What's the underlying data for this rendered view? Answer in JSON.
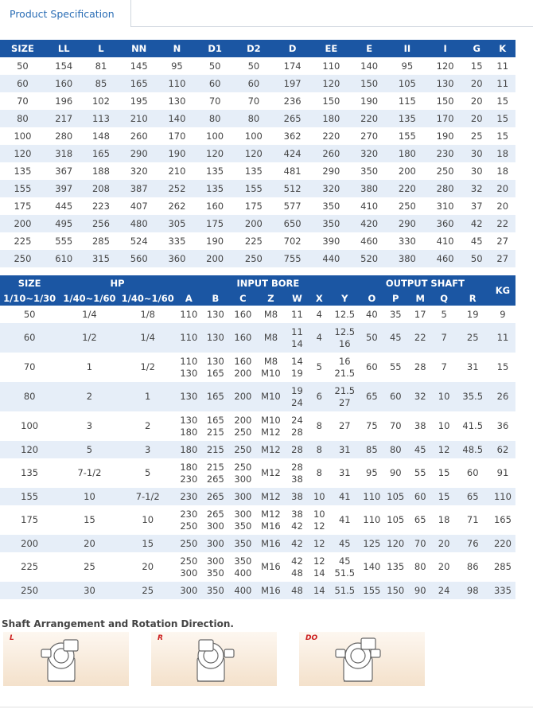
{
  "header": {
    "tab_label": "Product Specification"
  },
  "table1": {
    "columns": [
      "SIZE",
      "LL",
      "L",
      "NN",
      "N",
      "D1",
      "D2",
      "D",
      "EE",
      "E",
      "II",
      "I",
      "G",
      "K"
    ],
    "rows": [
      [
        "50",
        "154",
        "81",
        "145",
        "95",
        "50",
        "50",
        "174",
        "110",
        "140",
        "95",
        "120",
        "15",
        "11"
      ],
      [
        "60",
        "160",
        "85",
        "165",
        "110",
        "60",
        "60",
        "197",
        "120",
        "150",
        "105",
        "130",
        "20",
        "11"
      ],
      [
        "70",
        "196",
        "102",
        "195",
        "130",
        "70",
        "70",
        "236",
        "150",
        "190",
        "115",
        "150",
        "20",
        "15"
      ],
      [
        "80",
        "217",
        "113",
        "210",
        "140",
        "80",
        "80",
        "265",
        "180",
        "220",
        "135",
        "170",
        "20",
        "15"
      ],
      [
        "100",
        "280",
        "148",
        "260",
        "170",
        "100",
        "100",
        "362",
        "220",
        "270",
        "155",
        "190",
        "25",
        "15"
      ],
      [
        "120",
        "318",
        "165",
        "290",
        "190",
        "120",
        "120",
        "424",
        "260",
        "320",
        "180",
        "230",
        "30",
        "18"
      ],
      [
        "135",
        "367",
        "188",
        "320",
        "210",
        "135",
        "135",
        "481",
        "290",
        "350",
        "200",
        "250",
        "30",
        "18"
      ],
      [
        "155",
        "397",
        "208",
        "387",
        "252",
        "135",
        "155",
        "512",
        "320",
        "380",
        "220",
        "280",
        "32",
        "20"
      ],
      [
        "175",
        "445",
        "223",
        "407",
        "262",
        "160",
        "175",
        "577",
        "350",
        "410",
        "250",
        "310",
        "37",
        "20"
      ],
      [
        "200",
        "495",
        "256",
        "480",
        "305",
        "175",
        "200",
        "650",
        "350",
        "420",
        "290",
        "360",
        "42",
        "22"
      ],
      [
        "225",
        "555",
        "285",
        "524",
        "335",
        "190",
        "225",
        "702",
        "390",
        "460",
        "330",
        "410",
        "45",
        "27"
      ],
      [
        "250",
        "610",
        "315",
        "560",
        "360",
        "200",
        "250",
        "755",
        "440",
        "520",
        "380",
        "460",
        "50",
        "27"
      ]
    ]
  },
  "table2": {
    "group_headers": {
      "size": "SIZE",
      "hp": "HP",
      "input_bore": "INPUT BORE",
      "output_shaft": "OUTPUT SHAFT",
      "kg": "KG"
    },
    "sub_headers": [
      "1/10~1/30",
      "1/40~1/60",
      "1/40~1/60",
      "A",
      "B",
      "C",
      "Z",
      "W",
      "X",
      "Y",
      "O",
      "P",
      "M",
      "Q",
      "R"
    ],
    "rows": [
      {
        "size": "50",
        "hp1": "1/4",
        "hp2": "1/8",
        "a": "110",
        "b": "130",
        "c": "160",
        "z": "M8",
        "w": "11",
        "x": "4",
        "y": "12.5",
        "o": "40",
        "p": "35",
        "m": "17",
        "q": "5",
        "r": "19",
        "kg": "9"
      },
      {
        "size": "60",
        "hp1": "1/2",
        "hp2": "1/4",
        "a": "110",
        "b": "130",
        "c": "160",
        "z": "M8",
        "w": "11\n14",
        "x": "4",
        "y": "12.5\n16",
        "o": "50",
        "p": "45",
        "m": "22",
        "q": "7",
        "r": "25",
        "kg": "11"
      },
      {
        "size": "70",
        "hp1": "1",
        "hp2": "1/2",
        "a": "110\n130",
        "b": "130\n165",
        "c": "160\n200",
        "z": "M8\nM10",
        "w": "14\n19",
        "x": "5",
        "y": "16\n21.5",
        "o": "60",
        "p": "55",
        "m": "28",
        "q": "7",
        "r": "31",
        "kg": "15"
      },
      {
        "size": "80",
        "hp1": "2",
        "hp2": "1",
        "a": "130",
        "b": "165",
        "c": "200",
        "z": "M10",
        "w": "19\n24",
        "x": "6",
        "y": "21.5\n27",
        "o": "65",
        "p": "60",
        "m": "32",
        "q": "10",
        "r": "35.5",
        "kg": "26"
      },
      {
        "size": "100",
        "hp1": "3",
        "hp2": "2",
        "a": "130\n180",
        "b": "165\n215",
        "c": "200\n250",
        "z": "M10\nM12",
        "w": "24\n28",
        "x": "8",
        "y": "27",
        "o": "75",
        "p": "70",
        "m": "38",
        "q": "10",
        "r": "41.5",
        "kg": "36"
      },
      {
        "size": "120",
        "hp1": "5",
        "hp2": "3",
        "a": "180",
        "b": "215",
        "c": "250",
        "z": "M12",
        "w": "28",
        "x": "8",
        "y": "31",
        "o": "85",
        "p": "80",
        "m": "45",
        "q": "12",
        "r": "48.5",
        "kg": "62"
      },
      {
        "size": "135",
        "hp1": "7-1/2",
        "hp2": "5",
        "a": "180\n230",
        "b": "215\n265",
        "c": "250\n300",
        "z": "M12",
        "w": "28\n38",
        "x": "8",
        "y": "31",
        "o": "95",
        "p": "90",
        "m": "55",
        "q": "15",
        "r": "60",
        "kg": "91"
      },
      {
        "size": "155",
        "hp1": "10",
        "hp2": "7-1/2",
        "a": "230",
        "b": "265",
        "c": "300",
        "z": "M12",
        "w": "38",
        "x": "10",
        "y": "41",
        "o": "110",
        "p": "105",
        "m": "60",
        "q": "15",
        "r": "65",
        "kg": "110"
      },
      {
        "size": "175",
        "hp1": "15",
        "hp2": "10",
        "a": "230\n250",
        "b": "265\n300",
        "c": "300\n350",
        "z": "M12\nM16",
        "w": "38\n42",
        "x": "10\n12",
        "y": "41",
        "o": "110",
        "p": "105",
        "m": "65",
        "q": "18",
        "r": "71",
        "kg": "165"
      },
      {
        "size": "200",
        "hp1": "20",
        "hp2": "15",
        "a": "250",
        "b": "300",
        "c": "350",
        "z": "M16",
        "w": "42",
        "x": "12",
        "y": "45",
        "o": "125",
        "p": "120",
        "m": "70",
        "q": "20",
        "r": "76",
        "kg": "220"
      },
      {
        "size": "225",
        "hp1": "25",
        "hp2": "20",
        "a": "250\n300",
        "b": "300\n350",
        "c": "350\n400",
        "z": "M16",
        "w": "42\n48",
        "x": "12\n14",
        "y": "45\n51.5",
        "o": "140",
        "p": "135",
        "m": "80",
        "q": "20",
        "r": "86",
        "kg": "285"
      },
      {
        "size": "250",
        "hp1": "30",
        "hp2": "25",
        "a": "300",
        "b": "350",
        "c": "400",
        "z": "M16",
        "w": "48",
        "x": "14",
        "y": "51.5",
        "o": "155",
        "p": "150",
        "m": "90",
        "q": "24",
        "r": "98",
        "kg": "335"
      }
    ]
  },
  "shaft_section": {
    "title": "Shaft Arrangement and Rotation Direction.",
    "images": [
      {
        "label": "L",
        "icon": "gear-reducer-icon"
      },
      {
        "label": "R",
        "icon": "gear-reducer-icon"
      },
      {
        "label": "DO",
        "icon": "gear-reducer-icon"
      }
    ]
  },
  "colors": {
    "header_blue": "#1b56a3",
    "row_stripe": "#e6eef8",
    "tab_text": "#2a6db5",
    "label_red": "#cc1c1c"
  }
}
